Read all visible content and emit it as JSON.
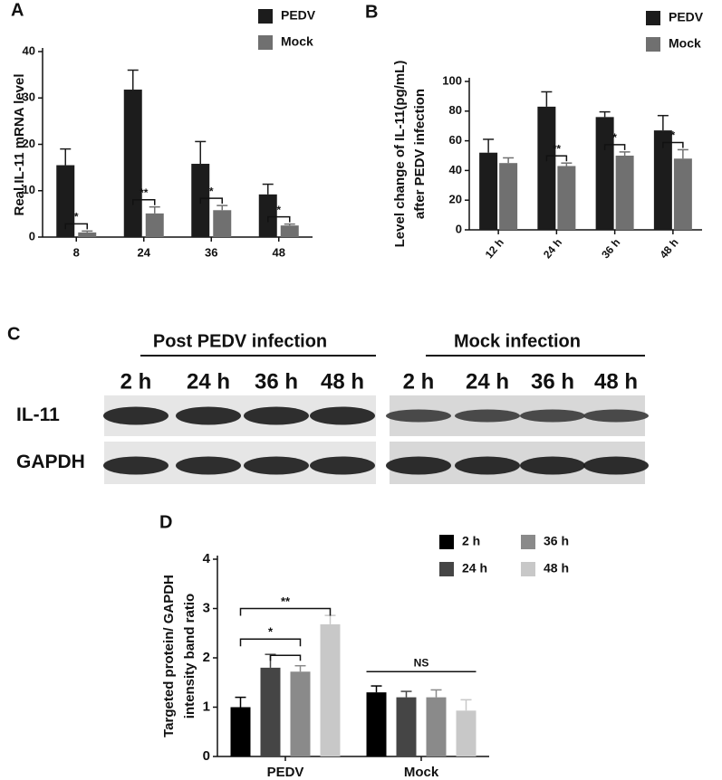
{
  "chart_data": [
    {
      "type": "bar",
      "panel": "A",
      "ylabel": [
        "Real.IL-11 mRNA level"
      ],
      "categories": [
        "8",
        "24",
        "36",
        "48"
      ],
      "series": [
        {
          "name": "PEDV",
          "color": "#1c1c1c",
          "values": [
            15.5,
            31.8,
            15.8,
            9.2
          ],
          "errors": [
            3.5,
            4.2,
            4.8,
            2.2
          ]
        },
        {
          "name": "Mock",
          "color": "#707070",
          "values": [
            1.0,
            5.1,
            5.8,
            2.5
          ],
          "errors": [
            0.3,
            1.4,
            1.0,
            0.3
          ]
        }
      ],
      "annotations": [
        "*",
        "**",
        "*",
        "*"
      ],
      "ylim": [
        0,
        40
      ],
      "yticks": [
        0,
        10,
        20,
        30,
        40
      ]
    },
    {
      "type": "bar",
      "panel": "B",
      "ylabel": [
        "Level change of IL-11(pg/mL)",
        "after PEDV infection"
      ],
      "categories": [
        "12 h",
        "24 h",
        "36 h",
        "48 h"
      ],
      "series": [
        {
          "name": "PEDV",
          "color": "#1c1c1c",
          "values": [
            52,
            83,
            76,
            67
          ],
          "errors": [
            9,
            10,
            3.5,
            10
          ]
        },
        {
          "name": "Mock",
          "color": "#707070",
          "values": [
            45,
            43,
            50,
            48
          ],
          "errors": [
            3.5,
            2,
            2.5,
            6
          ]
        }
      ],
      "annotations": [
        null,
        "**",
        "*",
        "*"
      ],
      "ylim": [
        0,
        100
      ],
      "yticks": [
        0,
        20,
        40,
        60,
        80,
        100
      ]
    },
    {
      "type": "bar",
      "panel": "D",
      "ylabel": [
        "Targeted protein/ GAPDH",
        "intensity band ratio"
      ],
      "categories": [
        "PEDV",
        "Mock"
      ],
      "series": [
        {
          "name": "2 h",
          "color": "#000000",
          "values": [
            1.0,
            1.3
          ],
          "errors": [
            0.2,
            0.13
          ]
        },
        {
          "name": "24 h",
          "color": "#454545",
          "values": [
            1.8,
            1.2
          ],
          "errors": [
            0.27,
            0.12
          ]
        },
        {
          "name": "36 h",
          "color": "#8a8a8a",
          "values": [
            1.72,
            1.2
          ],
          "errors": [
            0.12,
            0.15
          ]
        },
        {
          "name": "48 h",
          "color": "#c8c8c8",
          "values": [
            2.68,
            0.93
          ],
          "errors": [
            0.18,
            0.22
          ]
        }
      ],
      "annotations": [
        "*",
        "**",
        "NS"
      ],
      "ylim": [
        0,
        4
      ],
      "yticks": [
        0,
        1,
        2,
        3,
        4
      ]
    }
  ],
  "blot": {
    "panel": "C",
    "rows": [
      "IL-11",
      "GAPDH"
    ],
    "groups": [
      {
        "label": "Post PEDV infection",
        "lanes": [
          "2 h",
          "24 h",
          "36 h",
          "48 h"
        ]
      },
      {
        "label": "Mock infection",
        "lanes": [
          "2 h",
          "24 h",
          "36 h",
          "48 h"
        ]
      }
    ]
  }
}
